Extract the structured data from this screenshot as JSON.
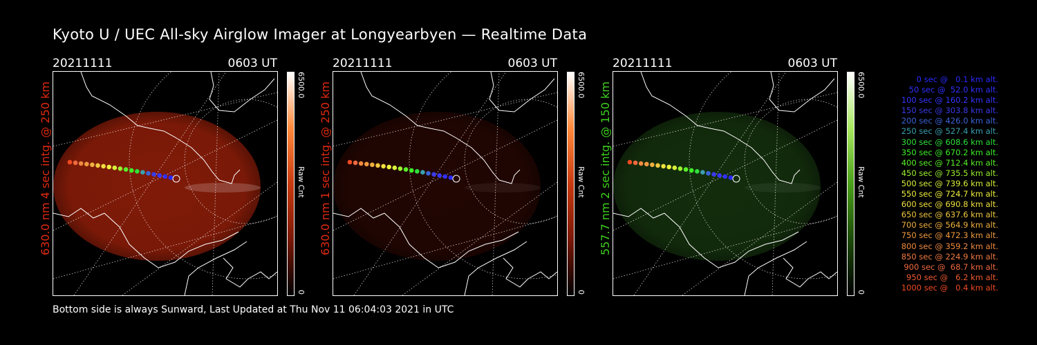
{
  "title": "Kyoto U / UEC All-sky Airglow Imager at Longyearbyen — Realtime Data",
  "footer": "Bottom side is always Sunward, Last Updated at Thu Nov 11 06:04:03 2021 in UTC",
  "panels": [
    {
      "date": "20211111",
      "time": "0603 UT",
      "side_label": "630.0 nm 4 sec intg. @ 250 km",
      "label_color": "#e02a10",
      "cbar_top": "6500.0",
      "cbar_bottom": "0",
      "cbar_mid": "Raw Cnt",
      "cbar_gradient": [
        "#ffffff",
        "#ff8a3c",
        "#c83a10",
        "#7a1805",
        "#000000"
      ],
      "image_color": "#a0210a",
      "image_intensity": 0.8
    },
    {
      "date": "20211111",
      "time": "0603 UT",
      "side_label": "630.0 nm 1 sec intg. @ 250 km",
      "label_color": "#e02a10",
      "cbar_top": "6500.0",
      "cbar_bottom": "0",
      "cbar_mid": "Raw Cnt",
      "cbar_gradient": [
        "#ffffff",
        "#ff8a3c",
        "#c83a10",
        "#7a1805",
        "#000000"
      ],
      "image_color": "#4a0d04",
      "image_intensity": 0.45
    },
    {
      "date": "20211111",
      "time": "0603 UT",
      "side_label": "557.7 nm 2 sec intg. @ 150 km",
      "label_color": "#3fd21e",
      "cbar_top": "6500.0",
      "cbar_bottom": "0",
      "cbar_mid": "Raw Cnt",
      "cbar_gradient": [
        "#ffffff",
        "#a8e860",
        "#4aa01a",
        "#1c4a08",
        "#000000"
      ],
      "image_color": "#1f4a14",
      "image_intensity": 0.6
    }
  ],
  "legend": [
    {
      "text": "0 sec @   0.1 km alt.",
      "color": "#2a2aff"
    },
    {
      "text": "50 sec @  52.0 km alt.",
      "color": "#3030ff"
    },
    {
      "text": "100 sec @ 160.2 km alt.",
      "color": "#3535ff"
    },
    {
      "text": "150 sec @ 303.8 km alt.",
      "color": "#3a3ae8"
    },
    {
      "text": "200 sec @ 426.0 km alt.",
      "color": "#3a64d8"
    },
    {
      "text": "250 sec @ 527.4 km alt.",
      "color": "#3aa0b0"
    },
    {
      "text": "300 sec @ 608.6 km alt.",
      "color": "#2ee03a"
    },
    {
      "text": "350 sec @ 670.2 km alt.",
      "color": "#3ef028"
    },
    {
      "text": "400 sec @ 712.4 km alt.",
      "color": "#5af02a"
    },
    {
      "text": "450 sec @ 735.5 km alt.",
      "color": "#9af030"
    },
    {
      "text": "500 sec @ 739.6 km alt.",
      "color": "#d8f03a"
    },
    {
      "text": "550 sec @ 724.7 km alt.",
      "color": "#f0f040"
    },
    {
      "text": "600 sec @ 690.8 km alt.",
      "color": "#f0e040"
    },
    {
      "text": "650 sec @ 637.6 km alt.",
      "color": "#f0c840"
    },
    {
      "text": "700 sec @ 564.9 km alt.",
      "color": "#f0b040"
    },
    {
      "text": "750 sec @ 472.3 km alt.",
      "color": "#f09a40"
    },
    {
      "text": "800 sec @ 359.2 km alt.",
      "color": "#f08a40"
    },
    {
      "text": "850 sec @ 224.9 km alt.",
      "color": "#f07a40"
    },
    {
      "text": "900 sec @  68.7 km alt.",
      "color": "#f06a40"
    },
    {
      "text": "950 sec @   6.2 km alt.",
      "color": "#f05a30"
    },
    {
      "text": "1000 sec @   0.4 km alt.",
      "color": "#f04a20"
    }
  ],
  "track_colors": [
    "#f04a20",
    "#f06a40",
    "#f08a40",
    "#f09a40",
    "#f0b040",
    "#f0c840",
    "#f0e040",
    "#f0f040",
    "#d8f03a",
    "#9af030",
    "#5af02a",
    "#3ef028",
    "#2ee03a",
    "#3aa0b0",
    "#3a64d8",
    "#3a3ae8",
    "#3535ff",
    "#3030ff",
    "#2a2aff",
    "#ffffff"
  ]
}
